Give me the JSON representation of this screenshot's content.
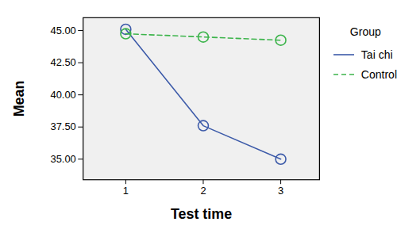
{
  "chart_data": {
    "type": "line",
    "x_label": "Test time",
    "y_label": "Mean",
    "legend_title": "Group",
    "legend": "right",
    "grid": false,
    "x": [
      1,
      2,
      3
    ],
    "xlim": [
      0.45,
      3.5
    ],
    "xticks": [
      1,
      2,
      3
    ],
    "ylim": [
      33.4,
      46.0
    ],
    "yticks": [
      {
        "value": 35,
        "label": "35.00"
      },
      {
        "value": 37.5,
        "label": "37.50"
      },
      {
        "value": 40,
        "label": "40.00"
      },
      {
        "value": 42.5,
        "label": "42.50"
      },
      {
        "value": 45,
        "label": "45.00"
      }
    ],
    "series": [
      {
        "name": "Tai chi",
        "color": "#3d5ba9",
        "line_style": "solid",
        "marker": "circle",
        "values": [
          45.1,
          37.6,
          35.0
        ]
      },
      {
        "name": "Control",
        "color": "#3cb44b",
        "line_style": "dashed",
        "marker": "circle",
        "values": [
          44.75,
          44.5,
          44.25
        ]
      }
    ]
  }
}
